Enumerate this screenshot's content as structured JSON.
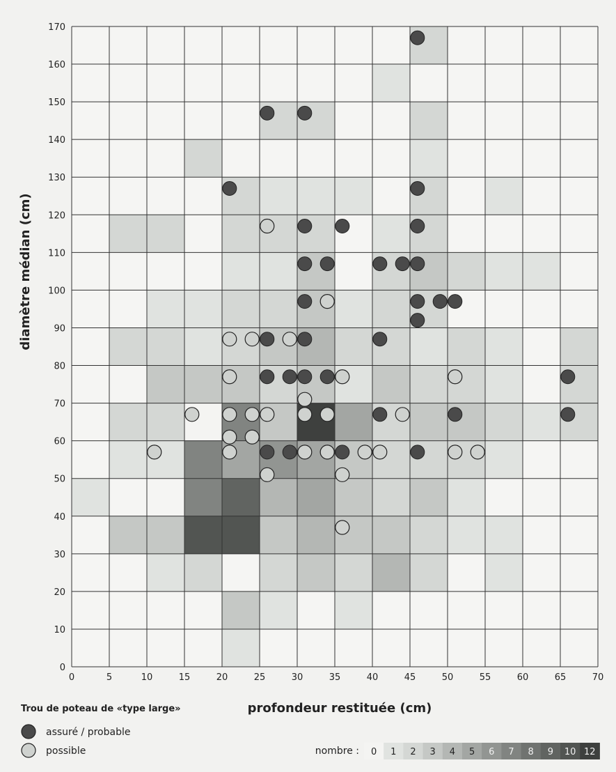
{
  "chart_data": {
    "type": "heatmap",
    "xlabel": "profondeur restituée (cm)",
    "ylabel": "diamètre médian (cm)",
    "xlim": [
      0,
      70
    ],
    "ylim": [
      0,
      170
    ],
    "x_ticks": [
      0,
      5,
      10,
      15,
      20,
      25,
      30,
      35,
      40,
      45,
      50,
      55,
      60,
      65,
      70
    ],
    "y_ticks": [
      0,
      10,
      20,
      30,
      40,
      50,
      60,
      70,
      80,
      90,
      100,
      110,
      120,
      130,
      140,
      150,
      160,
      170
    ],
    "cell_width": 5,
    "cell_height": 10,
    "grid": true,
    "cells": [
      {
        "x": 0,
        "y": 40,
        "v": 1
      },
      {
        "x": 5,
        "y": 30,
        "v": 3
      },
      {
        "x": 10,
        "y": 30,
        "v": 3
      },
      {
        "x": 5,
        "y": 50,
        "v": 1
      },
      {
        "x": 10,
        "y": 50,
        "v": 1
      },
      {
        "x": 5,
        "y": 60,
        "v": 2
      },
      {
        "x": 10,
        "y": 60,
        "v": 2
      },
      {
        "x": 10,
        "y": 70,
        "v": 3
      },
      {
        "x": 5,
        "y": 80,
        "v": 2
      },
      {
        "x": 10,
        "y": 80,
        "v": 2
      },
      {
        "x": 10,
        "y": 90,
        "v": 1
      },
      {
        "x": 5,
        "y": 110,
        "v": 2
      },
      {
        "x": 10,
        "y": 110,
        "v": 2
      },
      {
        "x": 15,
        "y": 130,
        "v": 2
      },
      {
        "x": 10,
        "y": 20,
        "v": 1
      },
      {
        "x": 15,
        "y": 20,
        "v": 2
      },
      {
        "x": 15,
        "y": 30,
        "v": 10
      },
      {
        "x": 20,
        "y": 30,
        "v": 10
      },
      {
        "x": 15,
        "y": 40,
        "v": 7
      },
      {
        "x": 20,
        "y": 40,
        "v": 9
      },
      {
        "x": 15,
        "y": 50,
        "v": 7
      },
      {
        "x": 20,
        "y": 50,
        "v": 5
      },
      {
        "x": 15,
        "y": 60,
        "v": 0
      },
      {
        "x": 20,
        "y": 60,
        "v": 7
      },
      {
        "x": 15,
        "y": 70,
        "v": 3
      },
      {
        "x": 20,
        "y": 70,
        "v": 3
      },
      {
        "x": 15,
        "y": 80,
        "v": 1
      },
      {
        "x": 20,
        "y": 80,
        "v": 2
      },
      {
        "x": 15,
        "y": 90,
        "v": 1
      },
      {
        "x": 20,
        "y": 90,
        "v": 2
      },
      {
        "x": 20,
        "y": 100,
        "v": 1
      },
      {
        "x": 20,
        "y": 110,
        "v": 2
      },
      {
        "x": 20,
        "y": 120,
        "v": 2
      },
      {
        "x": 20,
        "y": 10,
        "v": 3
      },
      {
        "x": 20,
        "y": 0,
        "v": 1
      },
      {
        "x": 25,
        "y": 20,
        "v": 2
      },
      {
        "x": 30,
        "y": 20,
        "v": 3
      },
      {
        "x": 35,
        "y": 20,
        "v": 2
      },
      {
        "x": 25,
        "y": 30,
        "v": 3
      },
      {
        "x": 30,
        "y": 30,
        "v": 4
      },
      {
        "x": 35,
        "y": 30,
        "v": 3
      },
      {
        "x": 25,
        "y": 40,
        "v": 4
      },
      {
        "x": 30,
        "y": 40,
        "v": 5
      },
      {
        "x": 35,
        "y": 40,
        "v": 3
      },
      {
        "x": 25,
        "y": 50,
        "v": 6
      },
      {
        "x": 30,
        "y": 50,
        "v": 5
      },
      {
        "x": 35,
        "y": 50,
        "v": 3
      },
      {
        "x": 25,
        "y": 60,
        "v": 3
      },
      {
        "x": 30,
        "y": 60,
        "v": 12
      },
      {
        "x": 35,
        "y": 60,
        "v": 5
      },
      {
        "x": 25,
        "y": 70,
        "v": 2
      },
      {
        "x": 30,
        "y": 70,
        "v": 3
      },
      {
        "x": 35,
        "y": 70,
        "v": 1
      },
      {
        "x": 25,
        "y": 80,
        "v": 3
      },
      {
        "x": 30,
        "y": 80,
        "v": 4
      },
      {
        "x": 35,
        "y": 80,
        "v": 2
      },
      {
        "x": 25,
        "y": 90,
        "v": 2
      },
      {
        "x": 30,
        "y": 90,
        "v": 3
      },
      {
        "x": 35,
        "y": 90,
        "v": 1
      },
      {
        "x": 25,
        "y": 100,
        "v": 1
      },
      {
        "x": 30,
        "y": 100,
        "v": 3
      },
      {
        "x": 25,
        "y": 110,
        "v": 2
      },
      {
        "x": 30,
        "y": 110,
        "v": 2
      },
      {
        "x": 25,
        "y": 120,
        "v": 1
      },
      {
        "x": 30,
        "y": 120,
        "v": 1
      },
      {
        "x": 35,
        "y": 120,
        "v": 1
      },
      {
        "x": 25,
        "y": 140,
        "v": 2
      },
      {
        "x": 30,
        "y": 140,
        "v": 2
      },
      {
        "x": 25,
        "y": 10,
        "v": 1
      },
      {
        "x": 35,
        "y": 10,
        "v": 1
      },
      {
        "x": 40,
        "y": 20,
        "v": 4
      },
      {
        "x": 45,
        "y": 20,
        "v": 2
      },
      {
        "x": 40,
        "y": 30,
        "v": 3
      },
      {
        "x": 45,
        "y": 30,
        "v": 2
      },
      {
        "x": 50,
        "y": 30,
        "v": 1
      },
      {
        "x": 40,
        "y": 40,
        "v": 2
      },
      {
        "x": 45,
        "y": 40,
        "v": 3
      },
      {
        "x": 50,
        "y": 40,
        "v": 1
      },
      {
        "x": 40,
        "y": 50,
        "v": 2
      },
      {
        "x": 45,
        "y": 50,
        "v": 2
      },
      {
        "x": 50,
        "y": 50,
        "v": 2
      },
      {
        "x": 40,
        "y": 60,
        "v": 2
      },
      {
        "x": 45,
        "y": 60,
        "v": 3
      },
      {
        "x": 50,
        "y": 60,
        "v": 3
      },
      {
        "x": 40,
        "y": 70,
        "v": 3
      },
      {
        "x": 45,
        "y": 70,
        "v": 2
      },
      {
        "x": 50,
        "y": 70,
        "v": 2
      },
      {
        "x": 40,
        "y": 80,
        "v": 2
      },
      {
        "x": 45,
        "y": 80,
        "v": 1
      },
      {
        "x": 50,
        "y": 80,
        "v": 2
      },
      {
        "x": 40,
        "y": 90,
        "v": 2
      },
      {
        "x": 45,
        "y": 90,
        "v": 2
      },
      {
        "x": 40,
        "y": 100,
        "v": 2
      },
      {
        "x": 45,
        "y": 100,
        "v": 3
      },
      {
        "x": 50,
        "y": 100,
        "v": 2
      },
      {
        "x": 40,
        "y": 110,
        "v": 1
      },
      {
        "x": 45,
        "y": 110,
        "v": 2
      },
      {
        "x": 45,
        "y": 120,
        "v": 2
      },
      {
        "x": 45,
        "y": 130,
        "v": 1
      },
      {
        "x": 45,
        "y": 140,
        "v": 2
      },
      {
        "x": 40,
        "y": 150,
        "v": 1
      },
      {
        "x": 45,
        "y": 160,
        "v": 2
      },
      {
        "x": 55,
        "y": 20,
        "v": 1
      },
      {
        "x": 55,
        "y": 30,
        "v": 1
      },
      {
        "x": 55,
        "y": 50,
        "v": 1
      },
      {
        "x": 55,
        "y": 60,
        "v": 2
      },
      {
        "x": 55,
        "y": 70,
        "v": 1
      },
      {
        "x": 55,
        "y": 80,
        "v": 1
      },
      {
        "x": 55,
        "y": 100,
        "v": 1
      },
      {
        "x": 60,
        "y": 60,
        "v": 1
      },
      {
        "x": 60,
        "y": 100,
        "v": 1
      },
      {
        "x": 55,
        "y": 120,
        "v": 1
      },
      {
        "x": 65,
        "y": 60,
        "v": 2
      },
      {
        "x": 65,
        "y": 70,
        "v": 2
      },
      {
        "x": 65,
        "y": 80,
        "v": 2
      }
    ],
    "series": [
      {
        "name": "assuré / probable",
        "points": [
          [
            46,
            167
          ],
          [
            26,
            147
          ],
          [
            31,
            147
          ],
          [
            21,
            127
          ],
          [
            46,
            127
          ],
          [
            31,
            117
          ],
          [
            36,
            117
          ],
          [
            46,
            117
          ],
          [
            31,
            107
          ],
          [
            34,
            107
          ],
          [
            41,
            107
          ],
          [
            44,
            107
          ],
          [
            46,
            107
          ],
          [
            31,
            97
          ],
          [
            46,
            97
          ],
          [
            49,
            97
          ],
          [
            51,
            97
          ],
          [
            46,
            92
          ],
          [
            26,
            87
          ],
          [
            31,
            87
          ],
          [
            41,
            87
          ],
          [
            26,
            77
          ],
          [
            29,
            77
          ],
          [
            31,
            77
          ],
          [
            34,
            77
          ],
          [
            66,
            77
          ],
          [
            41,
            67
          ],
          [
            51,
            67
          ],
          [
            66,
            67
          ],
          [
            26,
            57
          ],
          [
            29,
            57
          ],
          [
            34,
            57
          ],
          [
            36,
            57
          ],
          [
            46,
            57
          ]
        ]
      },
      {
        "name": "possible",
        "points": [
          [
            26,
            117
          ],
          [
            34,
            97
          ],
          [
            21,
            87
          ],
          [
            24,
            87
          ],
          [
            29,
            87
          ],
          [
            21,
            77
          ],
          [
            36,
            77
          ],
          [
            51,
            77
          ],
          [
            31,
            71
          ],
          [
            16,
            67
          ],
          [
            21,
            67
          ],
          [
            24,
            67
          ],
          [
            26,
            67
          ],
          [
            31,
            67
          ],
          [
            34,
            67
          ],
          [
            44,
            67
          ],
          [
            21,
            61
          ],
          [
            24,
            61
          ],
          [
            11,
            57
          ],
          [
            21,
            57
          ],
          [
            31,
            57
          ],
          [
            34,
            57
          ],
          [
            39,
            57
          ],
          [
            41,
            57
          ],
          [
            51,
            57
          ],
          [
            54,
            57
          ],
          [
            26,
            51
          ],
          [
            36,
            51
          ],
          [
            36,
            37
          ]
        ]
      }
    ],
    "legend": {
      "title": "Trou de poteau de «type large»",
      "scale_label": "nombre :",
      "scale_values": [
        "0",
        "1",
        "2",
        "3",
        "4",
        "5",
        "6",
        "7",
        "8",
        "9",
        "10",
        "12"
      ],
      "scale_colors": [
        "#f4f4f2",
        "#e0e3e0",
        "#d4d7d4",
        "#c5c8c5",
        "#b4b7b4",
        "#a3a6a3",
        "#929592",
        "#818481",
        "#707370",
        "#616461",
        "#525552",
        "#3e403e"
      ],
      "placement": "bottom"
    },
    "colors": {
      "filled_marker": "#4a4a4a",
      "open_marker": "#cfd2cf",
      "grid": "#333333"
    }
  }
}
